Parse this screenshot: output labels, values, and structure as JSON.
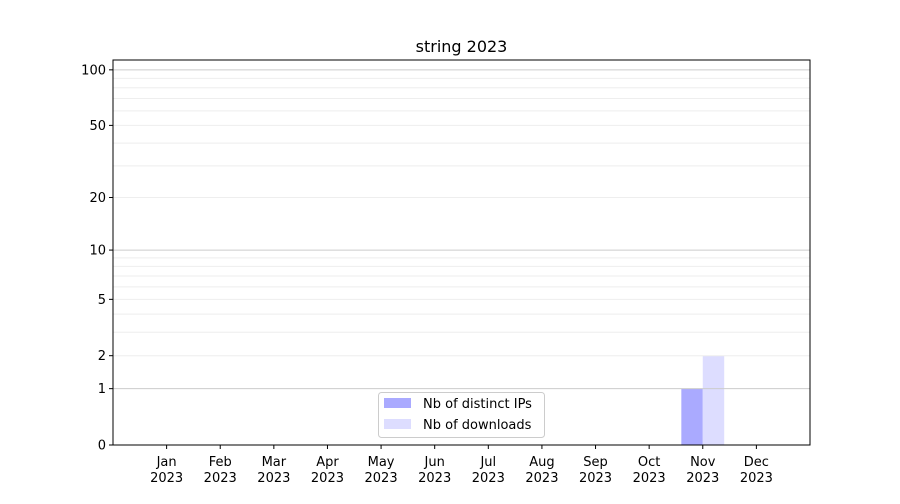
{
  "chart_data": {
    "type": "bar",
    "title": "string 2023",
    "xlabel": "",
    "ylabel": "",
    "categories": [
      "Jan\n2023",
      "Feb\n2023",
      "Mar\n2023",
      "Apr\n2023",
      "May\n2023",
      "Jun\n2023",
      "Jul\n2023",
      "Aug\n2023",
      "Sep\n2023",
      "Oct\n2023",
      "Nov\n2023",
      "Dec\n2023"
    ],
    "series": [
      {
        "name": "Nb of distinct IPs",
        "color": "#aaaaff",
        "values": [
          0,
          0,
          0,
          0,
          0,
          0,
          0,
          0,
          0,
          0,
          1,
          0
        ]
      },
      {
        "name": "Nb of downloads",
        "color": "#ddddff",
        "values": [
          0,
          0,
          0,
          0,
          0,
          0,
          0,
          0,
          0,
          0,
          2,
          0
        ]
      }
    ],
    "yscale": "symlog",
    "yticks": [
      0,
      1,
      2,
      5,
      10,
      20,
      50,
      100
    ],
    "ylim": [
      0,
      113
    ],
    "grid": true,
    "legend_position": "lower-center"
  }
}
